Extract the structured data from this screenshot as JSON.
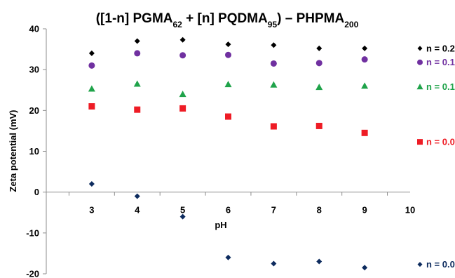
{
  "chart_data": {
    "type": "scatter",
    "title": {
      "parts": [
        {
          "text": "([1-n] PGMA"
        },
        {
          "text": "62",
          "sub": true
        },
        {
          "text": " + [n] PQDMA"
        },
        {
          "text": "95",
          "sub": true
        },
        {
          "text": ") – PHPMA"
        },
        {
          "text": "200",
          "sub": true
        }
      ]
    },
    "xlabel": "pH",
    "ylabel": "Zeta potential (mV)",
    "xlim": [
      2,
      10
    ],
    "ylim": [
      -20,
      40
    ],
    "xticks": [
      "3",
      "4",
      "5",
      "6",
      "7",
      "8",
      "9",
      "10"
    ],
    "yticks": [
      "40",
      "30",
      "20",
      "10",
      "0",
      "-10",
      "-20"
    ],
    "grid": false,
    "x": [
      3,
      4,
      5,
      6,
      7,
      8,
      9
    ],
    "series": [
      {
        "name": "n = 0.20",
        "marker": "diamond",
        "color": "#000000",
        "values": [
          34.0,
          37.0,
          37.3,
          36.2,
          36.0,
          35.2,
          35.2
        ]
      },
      {
        "name": "n = 0.15",
        "marker": "circle",
        "color": "#7030a0",
        "values": [
          31.0,
          34.0,
          33.5,
          33.6,
          31.5,
          31.6,
          32.5
        ]
      },
      {
        "name": "n = 0.10",
        "marker": "triangle",
        "color": "#1fa34a",
        "values": [
          25.3,
          26.5,
          24.0,
          26.4,
          26.3,
          25.7,
          26.0
        ]
      },
      {
        "name": "n = 0.05",
        "marker": "square",
        "color": "#ee1c25",
        "values": [
          21.0,
          20.2,
          20.5,
          18.5,
          16.1,
          16.2,
          14.5
        ]
      },
      {
        "name": "n = 0.00",
        "marker": "diamond",
        "color": "#0d2b5e",
        "values": [
          2.0,
          -1.0,
          -6.0,
          -16.0,
          -17.5,
          -17.0,
          -18.5
        ]
      }
    ]
  }
}
